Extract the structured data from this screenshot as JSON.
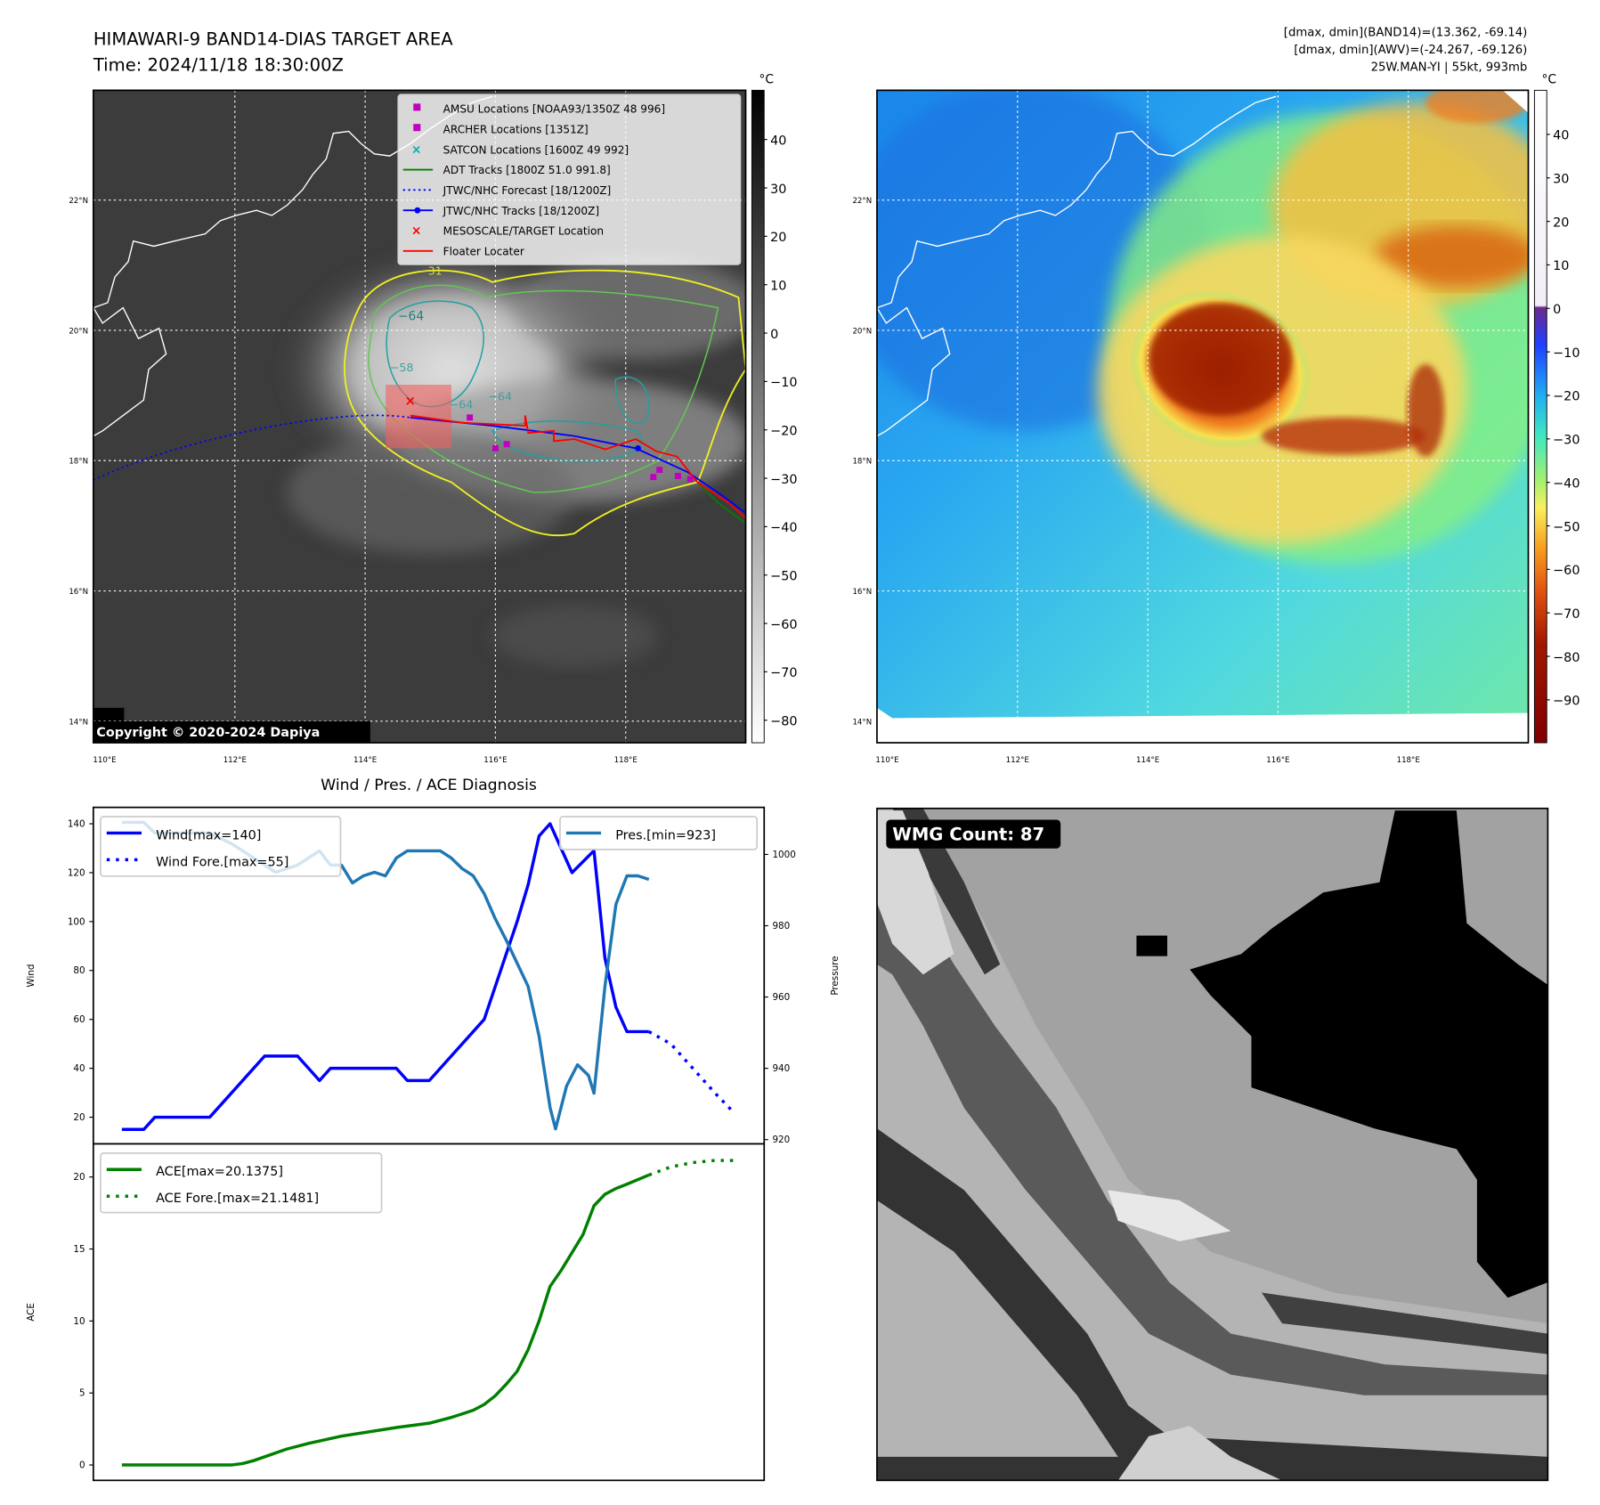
{
  "title": {
    "line1": "HIMAWARI-9 BAND14-DIAS TARGET AREA",
    "line2": "Time: 2024/11/18 18:30:00Z"
  },
  "info": {
    "line1": "[dmax, dmin](BAND14)=(13.362, -69.14)",
    "line2": "[dmax, dmin](AWV)=(-24.267, -69.126)",
    "line3": "25W.MAN-YI | 55kt, 993mb"
  },
  "maps": {
    "lat_labels": [
      "22°N",
      "20°N",
      "18°N",
      "16°N",
      "14°N"
    ],
    "lon_labels": [
      "110°E",
      "112°E",
      "114°E",
      "116°E",
      "118°E"
    ],
    "unit": "°C",
    "left_colorbar_ticks": [
      "40",
      "30",
      "20",
      "10",
      "0",
      "−10",
      "−20",
      "−30",
      "−40",
      "−50",
      "−60",
      "−70",
      "−80"
    ],
    "right_colorbar_ticks": [
      "40",
      "30",
      "20",
      "10",
      "0",
      "−10",
      "−20",
      "−30",
      "−40",
      "−50",
      "−60",
      "−70",
      "−80",
      "−90"
    ],
    "contour_labels": [
      "−31",
      "−64",
      "−58",
      "−64",
      "−64"
    ],
    "copyright": "Copyright © 2020-2024 Dapiya",
    "legend": [
      {
        "label": "AMSU Locations [NOAA93/1350Z 48 996]",
        "color": "#c000c0",
        "marker": "square"
      },
      {
        "label": "ARCHER Locations [1351Z]",
        "color": "#c000c0",
        "marker": "square"
      },
      {
        "label": "SATCON Locations [1600Z 49 992]",
        "color": "#00b0b0",
        "marker": "x"
      },
      {
        "label": "ADT Tracks [1800Z 51.0 991.8]",
        "color": "#008000",
        "marker": "line"
      },
      {
        "label": "JTWC/NHC Forecast [18/1200Z]",
        "color": "#0000ff",
        "marker": "dotted"
      },
      {
        "label": "JTWC/NHC Tracks [18/1200Z]",
        "color": "#0000ff",
        "marker": "line-dot"
      },
      {
        "label": "MESOSCALE/TARGET Location",
        "color": "#ff0000",
        "marker": "x"
      },
      {
        "label": "Floater Locater",
        "color": "#ff0000",
        "marker": "line"
      }
    ]
  },
  "wmg": {
    "label": "WMG Count: 87"
  },
  "chart_data": [
    {
      "type": "line",
      "title": "Wind / Pres. / ACE Diagnosis",
      "ylabel": "Wind",
      "ylabel_right": "Pressure",
      "xlim": [
        -2.6,
        58.5
      ],
      "ylim": [
        9.1,
        146.7
      ],
      "ylim_right": [
        918.8,
        1013.2
      ],
      "yticks": [
        20,
        40,
        60,
        80,
        100,
        120,
        140
      ],
      "yticks_right": [
        920,
        940,
        960,
        980,
        1000
      ],
      "series": [
        {
          "name": "Wind[max=140]",
          "axis": "left",
          "color": "#0000ff",
          "style": "solid",
          "points": [
            [
              0,
              15
            ],
            [
              2,
              15
            ],
            [
              3,
              20
            ],
            [
              8,
              20
            ],
            [
              13,
              45
            ],
            [
              16,
              45
            ],
            [
              18,
              35
            ],
            [
              19,
              40
            ],
            [
              25,
              40
            ],
            [
              26,
              35
            ],
            [
              28,
              35
            ],
            [
              33,
              60
            ],
            [
              36,
              100
            ],
            [
              37,
              115
            ],
            [
              38,
              135
            ],
            [
              39,
              140
            ],
            [
              41,
              120
            ],
            [
              43,
              129
            ],
            [
              44,
              85
            ],
            [
              45,
              65
            ],
            [
              46,
              55
            ],
            [
              48,
              55
            ]
          ]
        },
        {
          "name": "Wind Fore.[max=55]",
          "axis": "left",
          "color": "#0000ff",
          "style": "dotted",
          "points": [
            [
              48,
              55
            ],
            [
              50,
              50
            ],
            [
              52,
              40
            ],
            [
              54,
              30
            ],
            [
              55.5,
              23
            ]
          ]
        },
        {
          "name": "Pres.[min=923]",
          "axis": "right",
          "color": "#1f77b4",
          "style": "solid",
          "points": [
            [
              0,
              1009
            ],
            [
              2,
              1009
            ],
            [
              3,
              1006
            ],
            [
              8,
              1006
            ],
            [
              10,
              1003
            ],
            [
              14,
              995
            ],
            [
              16,
              997
            ],
            [
              17,
              999
            ],
            [
              18,
              1001
            ],
            [
              19,
              997
            ],
            [
              20,
              997
            ],
            [
              21,
              992
            ],
            [
              22,
              994
            ],
            [
              23,
              995
            ],
            [
              24,
              994
            ],
            [
              25,
              999
            ],
            [
              26,
              1001
            ],
            [
              29,
              1001
            ],
            [
              30,
              999
            ],
            [
              31,
              996
            ],
            [
              32,
              994
            ],
            [
              33,
              989
            ],
            [
              34,
              982
            ],
            [
              35,
              976
            ],
            [
              37,
              963
            ],
            [
              38,
              949
            ],
            [
              39,
              929
            ],
            [
              39.5,
              923
            ],
            [
              40.5,
              935
            ],
            [
              41.5,
              941
            ],
            [
              42.5,
              938
            ],
            [
              43,
              933
            ],
            [
              44,
              963
            ],
            [
              45,
              986
            ],
            [
              46,
              994
            ],
            [
              47,
              994
            ],
            [
              48,
              993
            ]
          ]
        }
      ]
    },
    {
      "type": "line",
      "ylabel": "ACE",
      "xlim": [
        -2.6,
        58.5
      ],
      "ylim": [
        -1.07,
        22.3
      ],
      "yticks": [
        0,
        5,
        10,
        15,
        20
      ],
      "series": [
        {
          "name": "ACE[max=20.1375]",
          "color": "#008000",
          "style": "solid",
          "points": [
            [
              0,
              0
            ],
            [
              10,
              0
            ],
            [
              11,
              0.1
            ],
            [
              12,
              0.3
            ],
            [
              15,
              1.1
            ],
            [
              17,
              1.5
            ],
            [
              20,
              2
            ],
            [
              25,
              2.6
            ],
            [
              28,
              2.9
            ],
            [
              30,
              3.3
            ],
            [
              32,
              3.8
            ],
            [
              33,
              4.2
            ],
            [
              34,
              4.8
            ],
            [
              35,
              5.6
            ],
            [
              36,
              6.5
            ],
            [
              37,
              8
            ],
            [
              38,
              10
            ],
            [
              39,
              12.4
            ],
            [
              40,
              13.5
            ],
            [
              42,
              16
            ],
            [
              43,
              18
            ],
            [
              44,
              18.8
            ],
            [
              45,
              19.2
            ],
            [
              46,
              19.5
            ],
            [
              48,
              20.1375
            ]
          ]
        },
        {
          "name": "ACE Fore.[max=21.1481]",
          "color": "#008000",
          "style": "dotted",
          "points": [
            [
              48,
              20.1375
            ],
            [
              50,
              20.7
            ],
            [
              52,
              21.0
            ],
            [
              54,
              21.15
            ],
            [
              56,
              21.1481
            ]
          ]
        }
      ]
    }
  ]
}
